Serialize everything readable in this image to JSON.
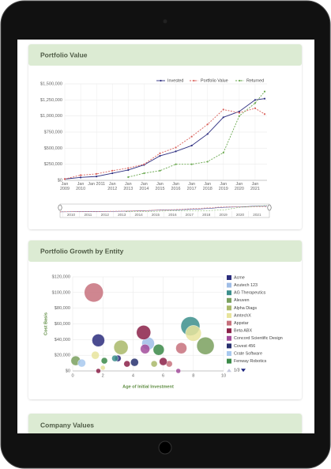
{
  "chart_data": [
    {
      "type": "line",
      "title": "Portfolio Value",
      "x": [
        2009,
        2010,
        2011,
        2012,
        2013,
        2014,
        2015,
        2016,
        2017,
        2018,
        2019,
        2020,
        2021,
        2021.6
      ],
      "xlim": [
        2009,
        2021.75
      ],
      "xticks": [
        {
          "value": 2009,
          "label": "Jan 2009"
        },
        {
          "value": 2010,
          "label": "Jan 2010"
        },
        {
          "value": 2011,
          "label": "Jan 2011"
        },
        {
          "value": 2012,
          "label": "Jan 2012"
        },
        {
          "value": 2013,
          "label": "Jan 2013"
        },
        {
          "value": 2014,
          "label": "Jan 2014"
        },
        {
          "value": 2015,
          "label": "Jan 2015"
        },
        {
          "value": 2016,
          "label": "Jan 2016"
        },
        {
          "value": 2017,
          "label": "Jan 2017"
        },
        {
          "value": 2018,
          "label": "Jan 2018"
        },
        {
          "value": 2019,
          "label": "Jan 2019"
        },
        {
          "value": 2020,
          "label": "Jan 2020"
        },
        {
          "value": 2021,
          "label": "Jan 2021"
        }
      ],
      "ylim": [
        0,
        1500000
      ],
      "yticks": [
        {
          "value": 0,
          "label": "$0"
        },
        {
          "value": 250000,
          "label": "$250,000"
        },
        {
          "value": 500000,
          "label": "$500,000"
        },
        {
          "value": 750000,
          "label": "$750,000"
        },
        {
          "value": 1000000,
          "label": "$1,000,000"
        },
        {
          "value": 1250000,
          "label": "$1,250,000"
        },
        {
          "value": 1500000,
          "label": "$1,500,000"
        }
      ],
      "grid": true,
      "legend": "top-right",
      "series": [
        {
          "name": "Invested",
          "color": "#2e2f80",
          "dashed": false,
          "values": [
            20000,
            45000,
            60000,
            110000,
            160000,
            240000,
            380000,
            450000,
            540000,
            720000,
            980000,
            1070000,
            1250000,
            1270000
          ]
        },
        {
          "name": "Portfolio Value",
          "color": "#d9625c",
          "dashed": true,
          "values": [
            20000,
            80000,
            100000,
            150000,
            190000,
            250000,
            420000,
            510000,
            680000,
            870000,
            1100000,
            1050000,
            1120000,
            1030000
          ]
        },
        {
          "name": "Returned",
          "color": "#6aa84f",
          "dashed": true,
          "values": [
            null,
            null,
            null,
            null,
            50000,
            110000,
            150000,
            250000,
            250000,
            290000,
            430000,
            1000000,
            1200000,
            1380000
          ]
        }
      ],
      "navigator_ticks": [
        "2010",
        "2011",
        "2012",
        "2013",
        "2014",
        "2015",
        "2016",
        "2017",
        "2018",
        "2019",
        "2020",
        "2021"
      ]
    },
    {
      "type": "bubble",
      "title": "Portfolio Growth by Entity",
      "xlabel": "Age of Initial Investment",
      "ylabel": "Cost Basis",
      "xlim": [
        0,
        10
      ],
      "xticks": [
        0,
        2,
        4,
        6,
        8,
        10
      ],
      "ylim": [
        0,
        120000
      ],
      "yticks": [
        {
          "value": 0,
          "label": "$0"
        },
        {
          "value": 20000,
          "label": "$20,000"
        },
        {
          "value": 40000,
          "label": "$40,000"
        },
        {
          "value": 60000,
          "label": "$60,000"
        },
        {
          "value": 80000,
          "label": "$80,000"
        },
        {
          "value": 100000,
          "label": "$100,000"
        },
        {
          "value": 120000,
          "label": "$120,000"
        }
      ],
      "grid": true,
      "legend": "right",
      "legend_page": "1/3",
      "series": [
        {
          "name": "Acme",
          "color": "#2b2d7c",
          "x": [
            1.7,
            3.0
          ],
          "values": [
            39000,
            16000
          ],
          "sizes": [
            64,
            16
          ]
        },
        {
          "name": "Acutech 123",
          "color": "#9fbde6",
          "x": [
            5.0
          ],
          "values": [
            35000
          ],
          "sizes": [
            64
          ]
        },
        {
          "name": "AG Therapeutics",
          "color": "#3c8f8c",
          "x": [
            7.8,
            2.8
          ],
          "values": [
            57000,
            16000
          ],
          "sizes": [
            144,
            16
          ]
        },
        {
          "name": "Aleuven",
          "color": "#7aa05e",
          "x": [
            8.8,
            0.2
          ],
          "values": [
            32000,
            13000
          ],
          "sizes": [
            121,
            36
          ]
        },
        {
          "name": "Alpha Diags",
          "color": "#a9b86a",
          "x": [
            3.2,
            5.4
          ],
          "values": [
            30000,
            9000
          ],
          "sizes": [
            81,
            16
          ]
        },
        {
          "name": "AmtechX",
          "color": "#e8e49c",
          "x": [
            8.0,
            1.5,
            2.0
          ],
          "values": [
            48000,
            20000,
            4000
          ],
          "sizes": [
            100,
            25,
            9
          ]
        },
        {
          "name": "Appstar",
          "color": "#c7717c",
          "x": [
            1.4,
            7.2,
            6.4
          ],
          "values": [
            100000,
            29000,
            9000
          ],
          "sizes": [
            144,
            49,
            16
          ]
        },
        {
          "name": "Beta ABX",
          "color": "#8b2149",
          "x": [
            4.7,
            3.6,
            6.0,
            1.7
          ],
          "values": [
            49000,
            9000,
            12000,
            0
          ],
          "sizes": [
            81,
            16,
            25,
            9
          ]
        },
        {
          "name": "Concord Scientific Design",
          "color": "#a24c9b",
          "x": [
            4.8,
            7.0
          ],
          "values": [
            28000,
            0
          ],
          "sizes": [
            36,
            9
          ]
        },
        {
          "name": "Covest 456",
          "color": "#27306e",
          "x": [
            4.1
          ],
          "values": [
            11000
          ],
          "sizes": [
            25
          ]
        },
        {
          "name": "Crate Software",
          "color": "#a8c9ef",
          "x": [
            0.6
          ],
          "values": [
            10000
          ],
          "sizes": [
            25
          ]
        },
        {
          "name": "Fenway Robotics",
          "color": "#3b8a48",
          "x": [
            5.7,
            2.1
          ],
          "values": [
            27000,
            13000
          ],
          "sizes": [
            49,
            16
          ]
        }
      ]
    }
  ],
  "sections": [
    {
      "title": "Company Values"
    }
  ]
}
